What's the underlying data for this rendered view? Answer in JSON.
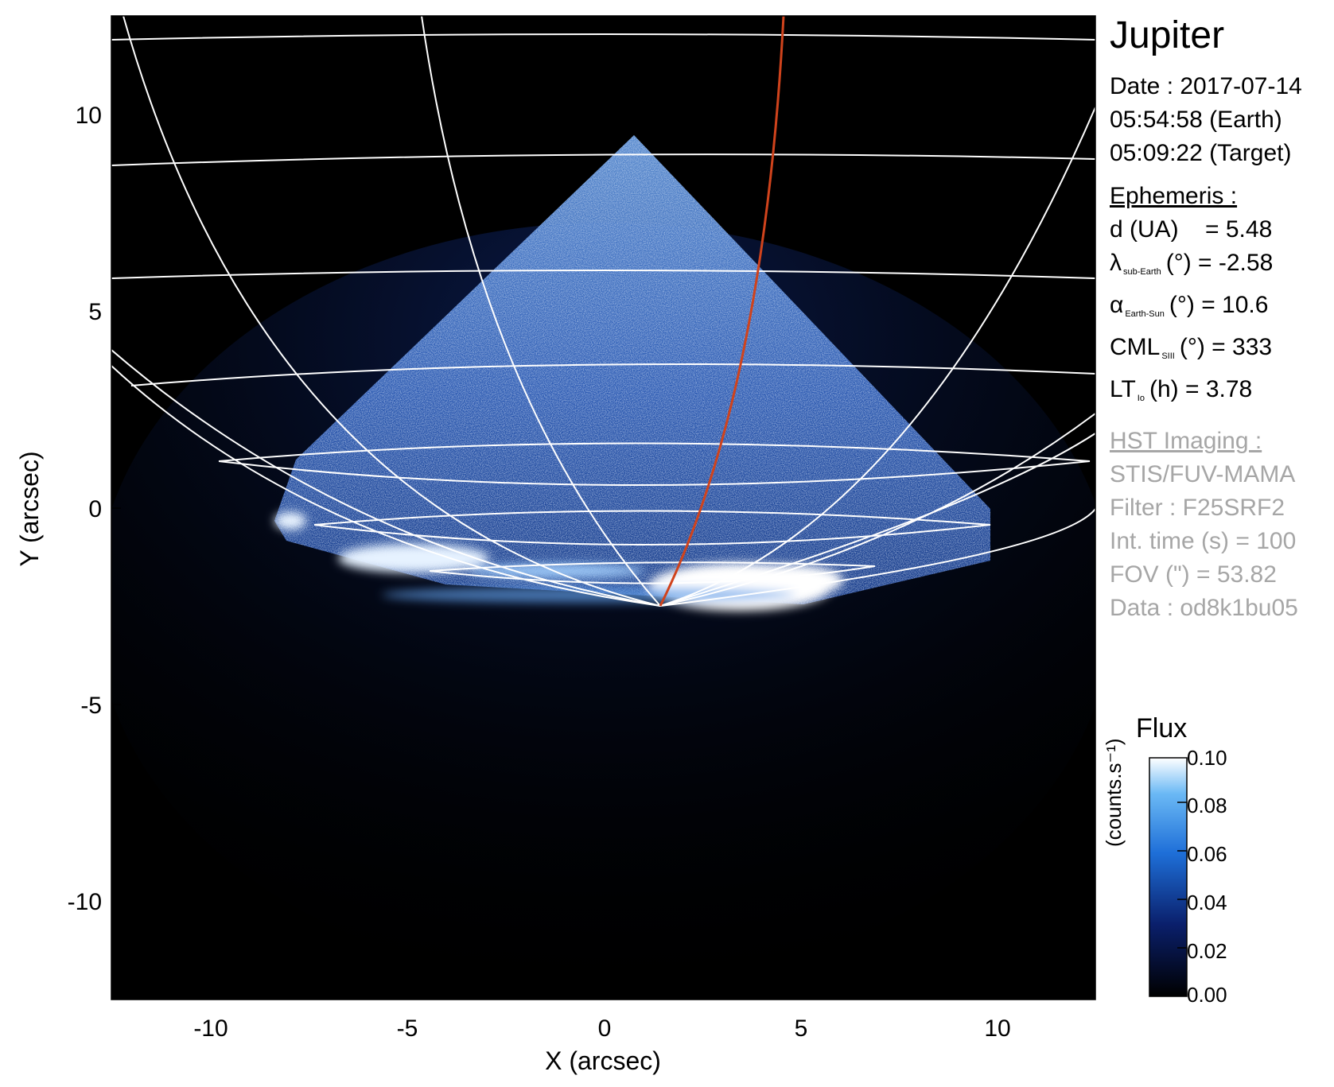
{
  "title": "Jupiter",
  "date_line": "Date : 2017-07-14",
  "earth_time": "05:54:58 (Earth)",
  "target_time": "05:09:22 (Target)",
  "ephemeris": {
    "header": "Ephemeris :",
    "d": "d (UA)    = 5.48",
    "lambda_sym": "λ",
    "lambda_sub": "sub-Earth",
    "lambda_rest": "(°) = -2.58",
    "alpha_sym": "α",
    "alpha_sub": "Earth-Sun",
    "alpha_rest": "(°) = 10.6",
    "cml_sym": "CML",
    "cml_sub": "SIII",
    "cml_rest": "(°) = 333",
    "lt_sym": "LT",
    "lt_sub": "Io",
    "lt_rest": "(h) = 3.78"
  },
  "hst": {
    "header": "HST Imaging :",
    "instrument": "STIS/FUV-MAMA",
    "filter": "Filter : F25SRF2",
    "int_time": "Int. time (s) = 100",
    "fov": "FOV (\") = 53.82",
    "data": "Data : od8k1bu05"
  },
  "axes": {
    "xlabel": "X (arcsec)",
    "ylabel": "Y (arcsec)",
    "x_ticks": [
      "-10",
      "-5",
      "0",
      "5",
      "10"
    ],
    "y_ticks": [
      "10",
      "5",
      "0",
      "-5",
      "-10"
    ],
    "xlim": [
      -12.5,
      12.5
    ],
    "ylim": [
      -12.5,
      12.5
    ]
  },
  "colorbar": {
    "title": "Flux",
    "label": "(counts.s⁻¹)",
    "ticks": [
      "0.10",
      "0.08",
      "0.06",
      "0.04",
      "0.02",
      "0.00"
    ],
    "range": [
      0.0,
      0.1
    ]
  },
  "colors": {
    "background": "#000000",
    "grid": "#ffffff",
    "io_footprint": "#d0431c",
    "emission_low": "#0a1f6b",
    "emission_mid": "#1e6fd8",
    "emission_high": "#e8f4ff"
  }
}
